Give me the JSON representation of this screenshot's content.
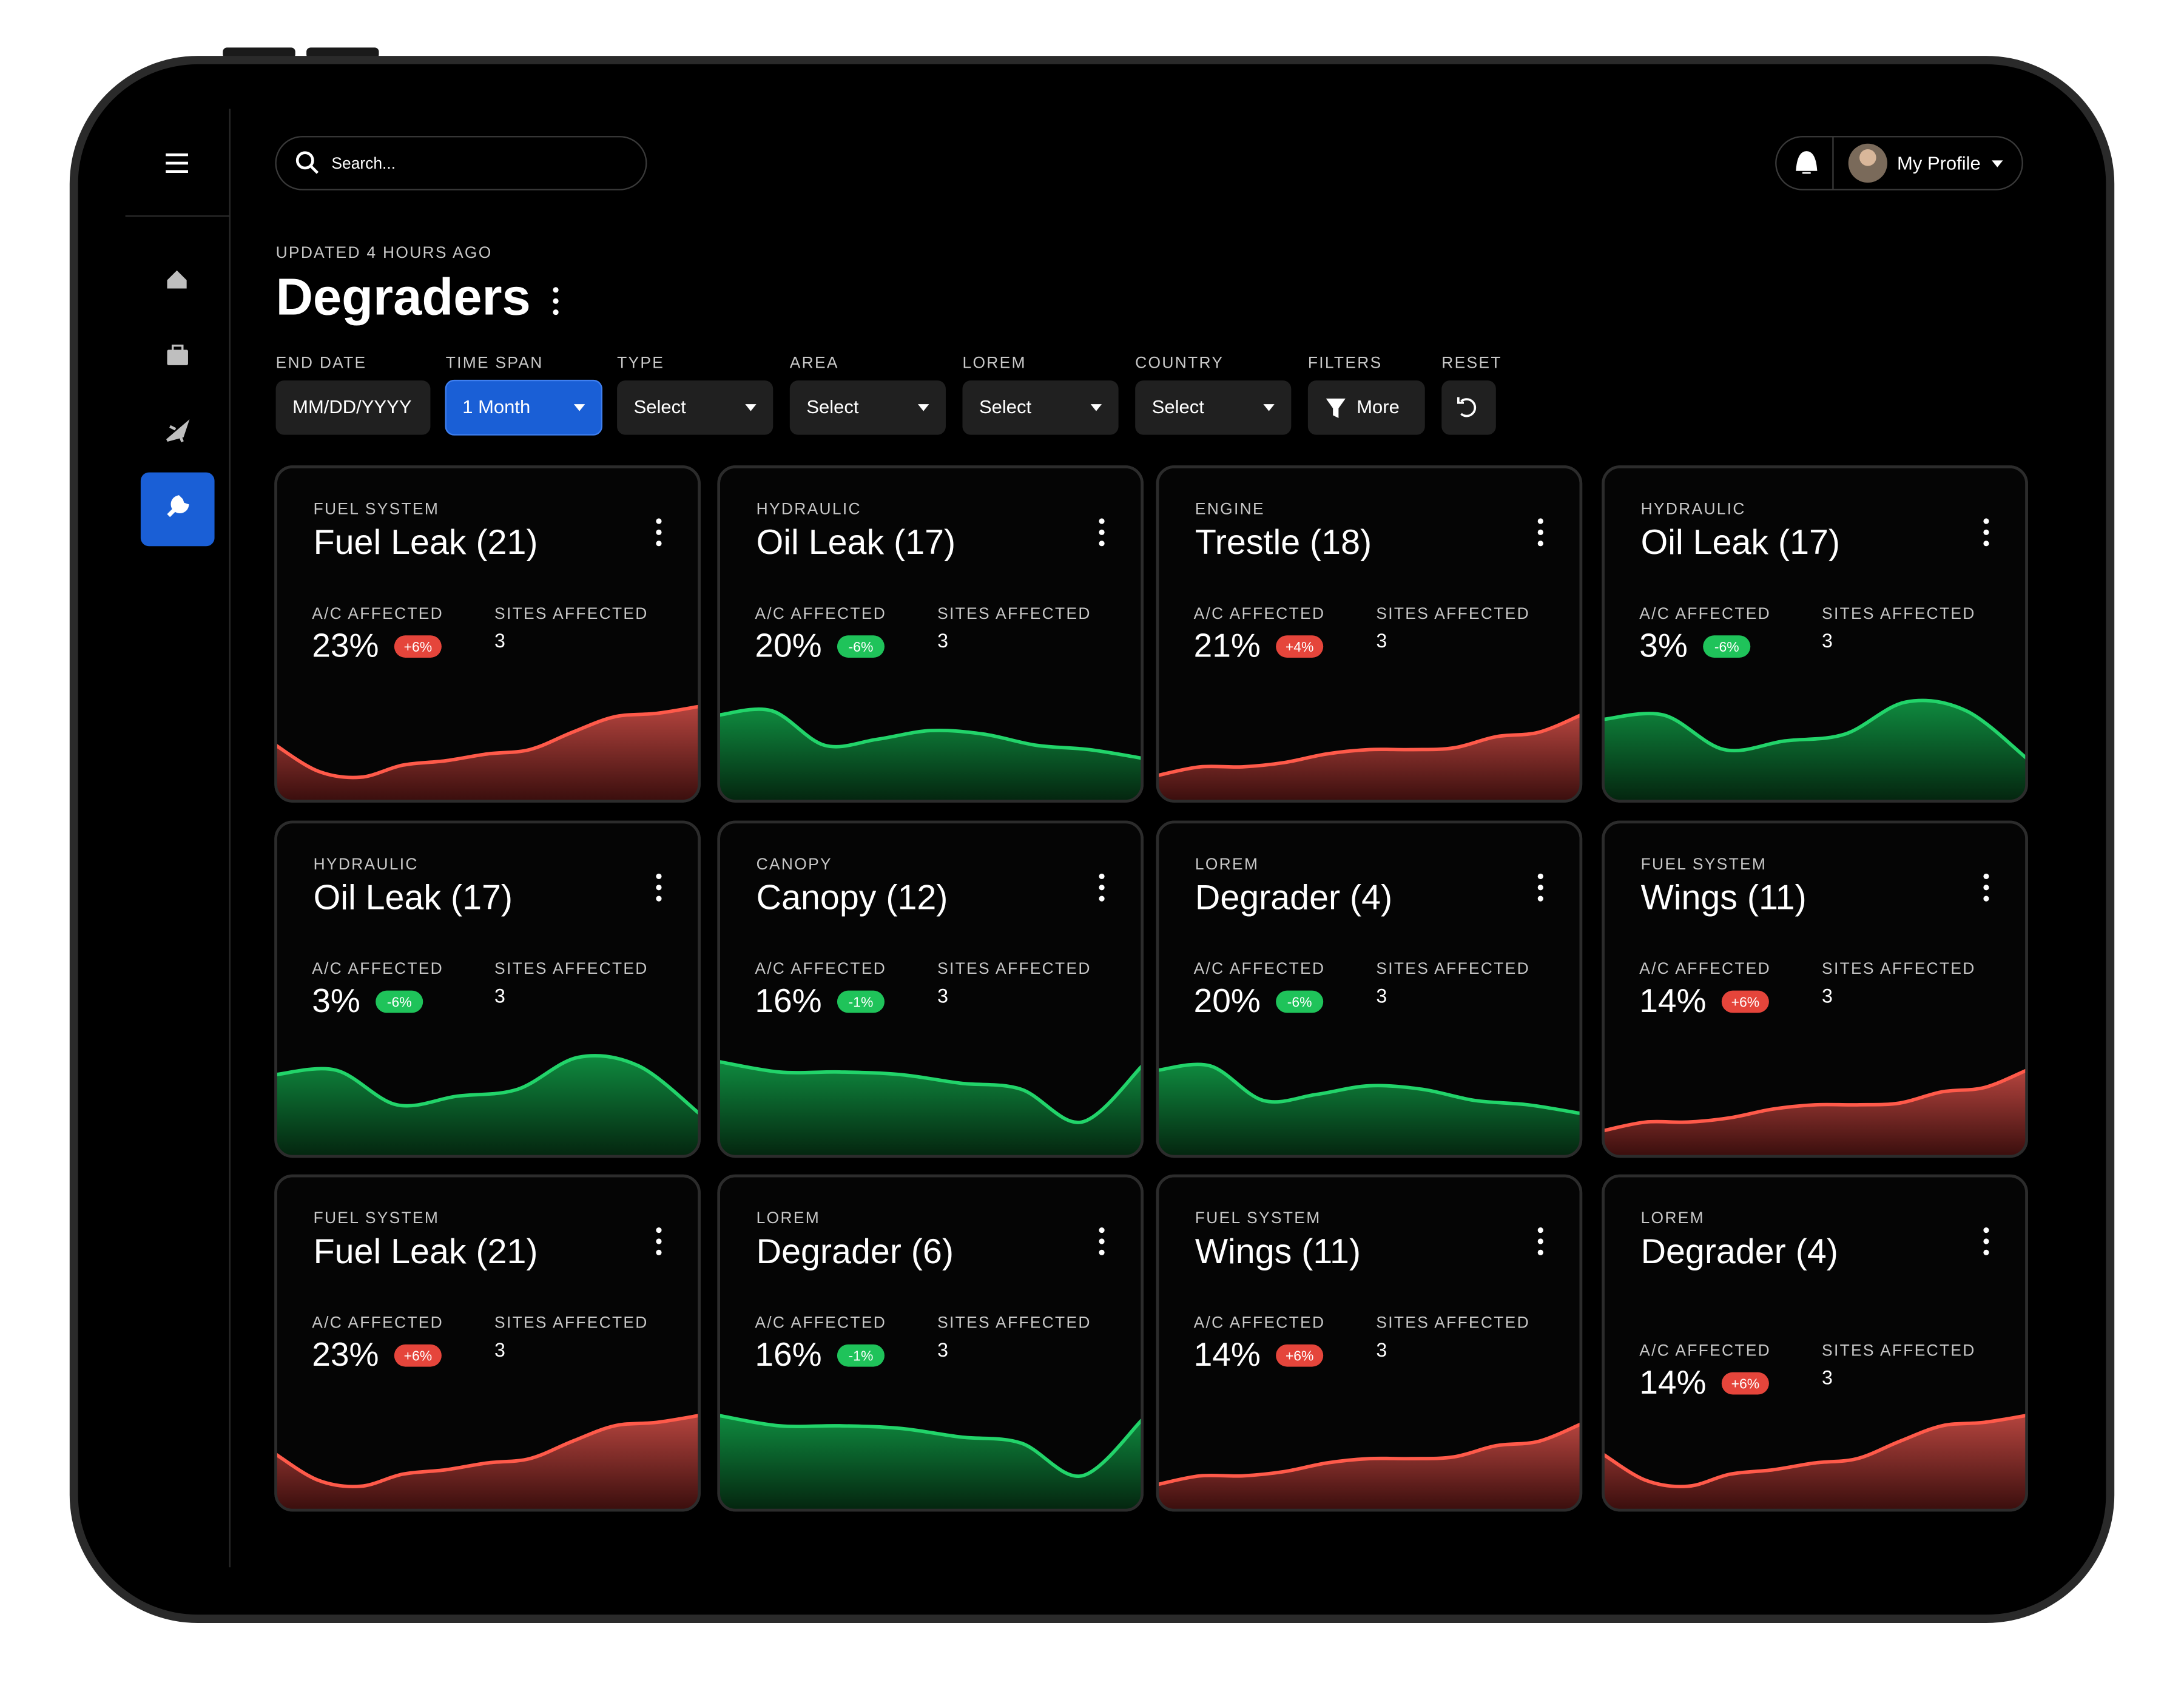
{
  "header": {
    "search_placeholder": "Search...",
    "profile": "My Profile",
    "updated": "UPDATED 4 HOURS AGO",
    "title": "Degraders"
  },
  "filters": [
    {
      "label": "END DATE",
      "value": "MM/DD/YYYY"
    },
    {
      "label": "TIME SPAN",
      "value": "1 Month"
    },
    {
      "label": "TYPE",
      "value": "Select"
    },
    {
      "label": "AREA",
      "value": "Select"
    },
    {
      "label": "LOREM",
      "value": "Select"
    },
    {
      "label": "COUNTRY",
      "value": "Select"
    },
    {
      "label": "FILTERS",
      "value": "More"
    },
    {
      "label": "RESET"
    }
  ],
  "card_labels": {
    "ac": "A/C AFFECTED",
    "sites": "SITES AFFECTED"
  },
  "cards": [
    {
      "category": "FUEL SYSTEM",
      "title": "Fuel Leak (21)",
      "ac": "23%",
      "change": "+6%",
      "sites": "3",
      "color": "#ff5a4a"
    },
    {
      "category": "HYDRAULIC",
      "title": "Oil Leak (17)",
      "ac": "20%",
      "change": "-6%",
      "sites": "3",
      "color": "#22d46a"
    },
    {
      "category": "ENGINE",
      "title": "Trestle (18)",
      "ac": "21%",
      "change": "+4%",
      "sites": "3",
      "color": "#ff5a4a"
    },
    {
      "category": "HYDRAULIC",
      "title": "Oil Leak (17)",
      "ac": "3%",
      "change": "-6%",
      "sites": "3",
      "color": "#22d46a"
    },
    {
      "category": "HYDRAULIC",
      "title": "Oil Leak (17)",
      "ac": "3%",
      "change": "-6%",
      "sites": "3",
      "color": "#22d46a"
    },
    {
      "category": "CANOPY",
      "title": "Canopy (12)",
      "ac": "16%",
      "change": "-1%",
      "sites": "3",
      "color": "#22d46a"
    },
    {
      "category": "LOREM",
      "title": "Degrader (4)",
      "ac": "20%",
      "change": "-6%",
      "sites": "3",
      "color": "#22d46a"
    },
    {
      "category": "FUEL SYSTEM",
      "title": "Wings (11)",
      "ac": "14%",
      "change": "+6%",
      "sites": "3",
      "color": "#ff5a4a"
    },
    {
      "category": "FUEL SYSTEM",
      "title": "Fuel Leak (21)",
      "ac": "23%",
      "change": "+6%",
      "sites": "3",
      "color": "#ff5a4a"
    },
    {
      "category": "LOREM",
      "title": "Degrader (6)",
      "ac": "16%",
      "change": "-1%",
      "sites": "3",
      "color": "#22d46a"
    },
    {
      "category": "FUEL SYSTEM",
      "title": "Wings (11)",
      "ac": "14%",
      "change": "+6%",
      "sites": "3",
      "color": "#ff5a4a"
    },
    {
      "category": "LOREM",
      "title": "Degrader (4)",
      "ac": "14%",
      "change": "+6%",
      "sites": "3",
      "color": "#ff5a4a"
    }
  ]
}
